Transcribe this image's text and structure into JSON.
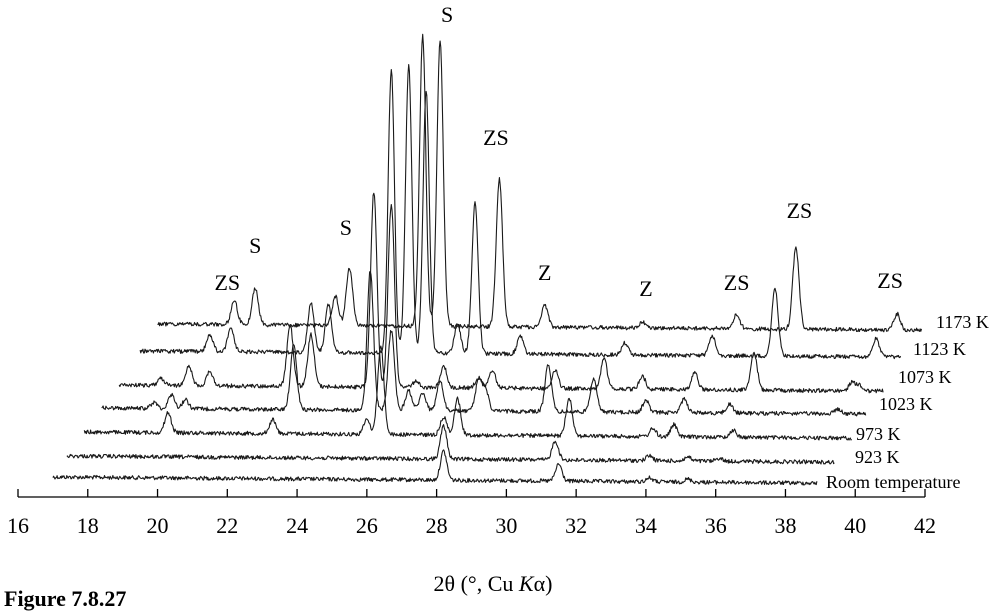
{
  "figure_caption": "Figure 7.8.27",
  "chart_data": {
    "type": "line",
    "xlabel": "2θ (°, Cu Kα)",
    "xlabel_parts": [
      "2θ (°, Cu ",
      "K",
      "α)"
    ],
    "xlim": [
      16,
      42
    ],
    "xticks": [
      16,
      18,
      20,
      22,
      24,
      26,
      28,
      30,
      32,
      34,
      36,
      38,
      40,
      42
    ],
    "ylabel": "",
    "grid": false,
    "legend": "none",
    "series": [
      {
        "name": "Room temperature",
        "x_range": [
          17.0,
          38.9
        ],
        "peaks": [
          [
            28.2,
            29
          ],
          [
            31.5,
            17
          ],
          [
            34.1,
            4
          ],
          [
            35.2,
            3
          ]
        ],
        "noise": 2.0
      },
      {
        "name": "923 K",
        "x_range": [
          17.4,
          39.4
        ],
        "peaks": [
          [
            28.2,
            33
          ],
          [
            31.4,
            19
          ],
          [
            34.1,
            5
          ],
          [
            35.2,
            4
          ],
          [
            36.1,
            3
          ]
        ],
        "noise": 2.0
      },
      {
        "name": "973 K",
        "x_range": [
          17.9,
          39.9
        ],
        "peaks": [
          [
            20.3,
            20
          ],
          [
            23.3,
            14
          ],
          [
            26.0,
            15
          ],
          [
            26.4,
            88
          ],
          [
            28.2,
            18
          ],
          [
            28.6,
            36
          ],
          [
            31.8,
            38
          ],
          [
            34.2,
            8
          ],
          [
            34.8,
            12
          ],
          [
            36.5,
            7
          ]
        ],
        "noise": 2.0
      },
      {
        "name": "1023 K",
        "x_range": [
          18.4,
          40.3
        ],
        "peaks": [
          [
            19.9,
            6
          ],
          [
            20.4,
            14
          ],
          [
            20.8,
            9
          ],
          [
            23.9,
            65
          ],
          [
            26.1,
            140
          ],
          [
            26.7,
            80
          ],
          [
            27.2,
            20
          ],
          [
            27.6,
            18
          ],
          [
            28.1,
            30
          ],
          [
            29.2,
            30
          ],
          [
            29.4,
            22
          ],
          [
            31.2,
            48
          ],
          [
            32.5,
            34
          ],
          [
            34.0,
            12
          ],
          [
            35.1,
            14
          ],
          [
            36.4,
            9
          ],
          [
            39.5,
            5
          ]
        ],
        "noise": 2.0
      },
      {
        "name": "1073 K",
        "x_range": [
          18.9,
          40.8
        ],
        "peaks": [
          [
            20.1,
            7
          ],
          [
            20.9,
            20
          ],
          [
            21.5,
            14
          ],
          [
            23.8,
            61
          ],
          [
            24.4,
            52
          ],
          [
            26.2,
            195
          ],
          [
            26.7,
            183
          ],
          [
            27.4,
            6
          ],
          [
            28.2,
            22
          ],
          [
            29.2,
            10
          ],
          [
            29.6,
            18
          ],
          [
            31.4,
            18
          ],
          [
            32.8,
            30
          ],
          [
            33.9,
            13
          ],
          [
            35.4,
            17
          ],
          [
            37.1,
            37
          ],
          [
            39.9,
            8
          ],
          [
            40.1,
            6
          ]
        ],
        "noise": 2.0
      },
      {
        "name": "1123 K",
        "x_range": [
          19.5,
          41.3
        ],
        "peaks": [
          [
            21.5,
            17
          ],
          [
            22.1,
            24
          ],
          [
            24.4,
            50
          ],
          [
            24.9,
            48
          ],
          [
            26.7,
            283
          ],
          [
            27.2,
            288
          ],
          [
            27.7,
            263
          ],
          [
            28.6,
            30
          ],
          [
            29.1,
            150
          ],
          [
            30.4,
            18
          ],
          [
            33.4,
            12
          ],
          [
            35.9,
            20
          ],
          [
            37.7,
            68
          ],
          [
            40.6,
            18
          ]
        ],
        "noise": 2.0
      },
      {
        "name": "1173 K",
        "x_range": [
          20.0,
          41.9
        ],
        "peaks": [
          [
            22.2,
            24
          ],
          [
            22.8,
            36
          ],
          [
            25.1,
            29
          ],
          [
            25.5,
            58
          ],
          [
            27.6,
            290
          ],
          [
            28.1,
            285
          ],
          [
            29.8,
            148
          ],
          [
            31.1,
            22
          ],
          [
            33.9,
            6
          ],
          [
            36.6,
            14
          ],
          [
            38.3,
            82
          ],
          [
            41.2,
            16
          ]
        ],
        "noise": 2.0
      }
    ],
    "annotations": [
      {
        "text": "ZS",
        "x": 22.0,
        "near_series": "1173 K"
      },
      {
        "text": "S",
        "x": 22.8,
        "near_series": "1173 K"
      },
      {
        "text": "S",
        "x": 25.4,
        "near_series": "1173 K"
      },
      {
        "text": "S",
        "x": 28.3,
        "near_series": "1173 K"
      },
      {
        "text": "ZS",
        "x": 29.7,
        "near_series": "1173 K"
      },
      {
        "text": "Z",
        "x": 31.1,
        "near_series": "1173 K"
      },
      {
        "text": "Z",
        "x": 34.0,
        "near_series": "1173 K"
      },
      {
        "text": "ZS",
        "x": 36.6,
        "near_series": "1173 K"
      },
      {
        "text": "ZS",
        "x": 38.4,
        "near_series": "1173 K"
      },
      {
        "text": "ZS",
        "x": 41.0,
        "near_series": "1173 K"
      }
    ]
  }
}
